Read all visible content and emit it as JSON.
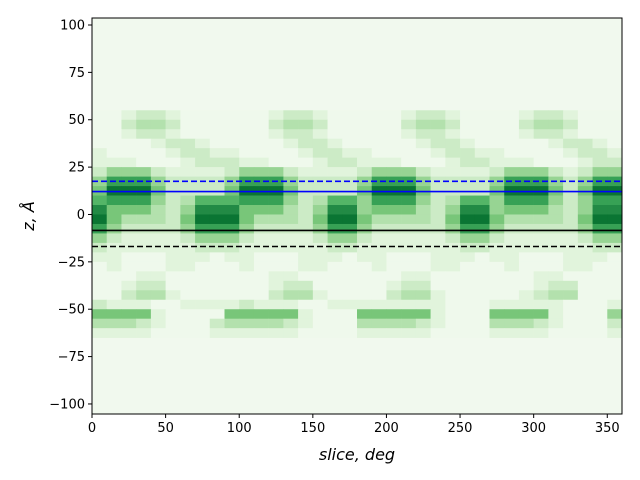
{
  "chart_data": {
    "type": "heatmap",
    "title": "",
    "xlabel": "slice, deg",
    "ylabel": "z, Å",
    "xlim": [
      0,
      360
    ],
    "ylim": [
      -105.3,
      103.7
    ],
    "x_bin_width_deg": 10,
    "z_bin_height": 5,
    "colormap": "Greens",
    "grid": false,
    "xticks": [
      "0",
      "50",
      "100",
      "150",
      "200",
      "250",
      "300",
      "350"
    ],
    "yticks": [
      "-100",
      "-75",
      "-50",
      "-25",
      "0",
      "25",
      "50",
      "75",
      "100"
    ],
    "background_level": 0,
    "level_max": 9,
    "rows": [
      {
        "z": 50,
        "levels": "001221000000122100000122100001221000"
      },
      {
        "z": 45,
        "levels": "002332000000233200000233200002332000"
      },
      {
        "z": 40,
        "levels": "001221000000122100000122100001221000"
      },
      {
        "z": 35,
        "levels": "000012210000012210000012210000012210"
      },
      {
        "z": 30,
        "levels": "100001221100001221100001221100001221"
      },
      {
        "z": 25,
        "levels": "111000122211000122111000122111000122"
      },
      {
        "z": 20,
        "levels": "244421111244421111244421111244421244"
      },
      {
        "z": 15,
        "levels": "477742222477742222477742222477742477"
      },
      {
        "z": 10,
        "levels": "599952222599952222599952222599952599"
      },
      {
        "z": 5,
        "levels": "677742366677742366477742366477742477"
      },
      {
        "z": 0,
        "levels": "855532488855532488455532488455532488"
      },
      {
        "z": -5,
        "levels": "953332599953332599533332599533332599"
      },
      {
        "z": -10,
        "levels": "742222477742222477422222477422222477"
      },
      {
        "z": -15,
        "levels": "421111244421111244211111244211111244"
      },
      {
        "z": -20,
        "levels": "211111122211111122111111122111111122"
      },
      {
        "z": -25,
        "levels": "110001110110001110110001110110001110"
      },
      {
        "z": -30,
        "levels": "010001100010001100010001100010001100"
      },
      {
        "z": -35,
        "levels": "000110000000110000000110000000110000"
      },
      {
        "z": -40,
        "levels": "001220000000122000001220000000122000"
      },
      {
        "z": -45,
        "levels": "002331000000233100002331000001233000"
      },
      {
        "z": -50,
        "levels": "211100111121110011111111000111110001"
      },
      {
        "z": -55,
        "levels": "555510000555551000555551000555510004"
      },
      {
        "z": -60,
        "levels": "333210002333321000333321000333210002"
      },
      {
        "z": -65,
        "levels": "111100001111110000111110000111100001"
      }
    ],
    "hlines": [
      {
        "z": 17.5,
        "color": "#0000ff",
        "style": "dashed"
      },
      {
        "z": 12.1,
        "color": "#0000ff",
        "style": "solid"
      },
      {
        "z": -8.4,
        "color": "#000000",
        "style": "solid"
      },
      {
        "z": -16.9,
        "color": "#000000",
        "style": "dashed"
      }
    ]
  }
}
